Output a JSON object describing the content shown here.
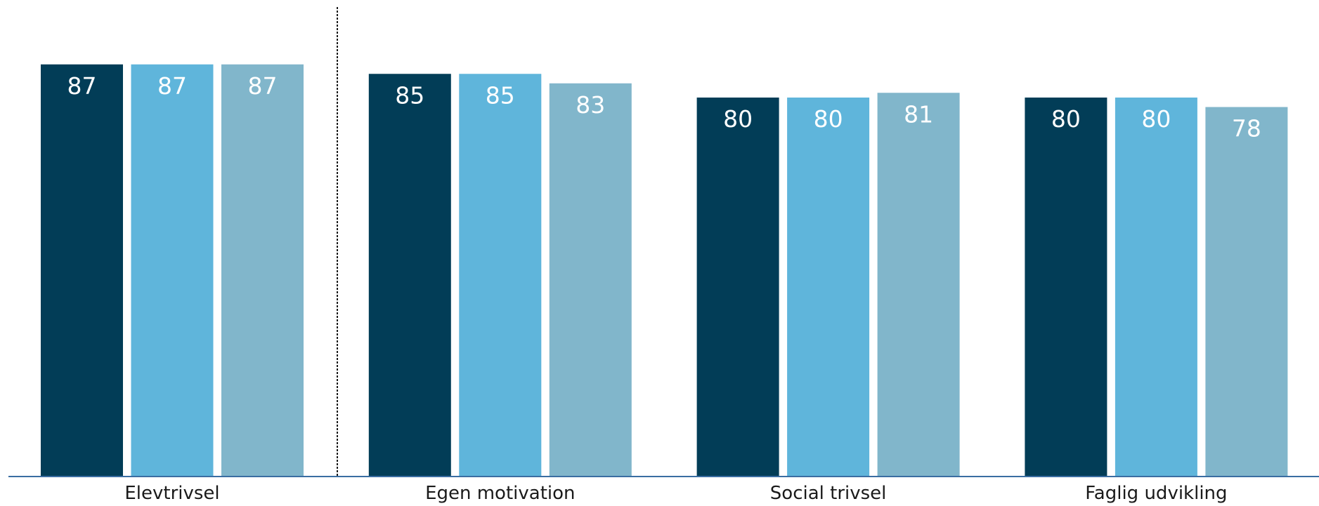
{
  "chart_data": {
    "type": "bar",
    "categories": [
      "Elevtrivsel",
      "Egen motivation",
      "Social trivsel",
      "Faglig udvikling"
    ],
    "series": [
      {
        "values": [
          87,
          85,
          80,
          80
        ],
        "color": "#023d57"
      },
      {
        "values": [
          87,
          85,
          80,
          80
        ],
        "color": "#5fb5db"
      },
      {
        "values": [
          87,
          83,
          81,
          78
        ],
        "color": "#81b6cb"
      }
    ],
    "data_labels": true,
    "ylim": [
      0,
      100
    ],
    "grid": false,
    "axis_color": "#3a6da2",
    "divider_after_category": 0
  }
}
